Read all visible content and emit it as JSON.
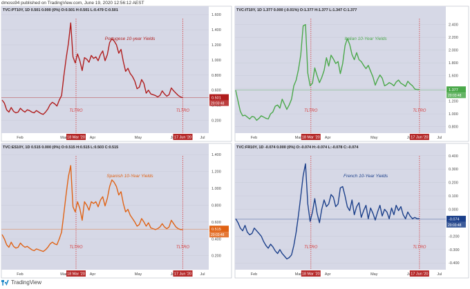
{
  "header": {
    "text": "dmoss94 published on TradingView.com, June 19, 2020 12:56:12 AEST"
  },
  "footer": {
    "text": "TradingView",
    "icon": "tradingview-logo-icon"
  },
  "colors": {
    "panel_bg": "#d6d8e6",
    "marker": "#d63a3a",
    "grid": "#c8cad8"
  },
  "chart_data": [
    {
      "type": "line",
      "ticker": "TVC:PT10Y, 1D  0.501  0.000 (0%)  O:0.501 H:0.501 L:0.479 C:0.501",
      "title": "Portugese 10-year Yields",
      "color": "#b01c1c",
      "ylim": [
        0.05,
        1.62
      ],
      "yticks": [
        "1.600",
        "1.400",
        "1.200",
        "1.000",
        "0.800",
        "0.600",
        "0.400",
        "0.200"
      ],
      "ytick_values": [
        1.6,
        1.4,
        1.2,
        1.0,
        0.8,
        0.6,
        0.4,
        0.2
      ],
      "xticks": [
        "Feb",
        "Mar",
        "Apr",
        "May",
        "Jun",
        "Jul"
      ],
      "xtick_positions": [
        0.09,
        0.3,
        0.44,
        0.66,
        0.83,
        0.97
      ],
      "event_markers": [
        {
          "label": "18 Mar '20",
          "pos": 0.36
        },
        {
          "label": "17 Jun '20",
          "pos": 0.875
        }
      ],
      "event_label": "TLTRO",
      "last_value": "0.501",
      "last_time": "20:03:48",
      "last": 0.501,
      "values": [
        0.47,
        0.43,
        0.34,
        0.31,
        0.37,
        0.32,
        0.3,
        0.31,
        0.36,
        0.33,
        0.31,
        0.34,
        0.33,
        0.31,
        0.3,
        0.33,
        0.31,
        0.29,
        0.28,
        0.31,
        0.35,
        0.41,
        0.44,
        0.42,
        0.39,
        0.47,
        0.53,
        0.79,
        1.02,
        1.22,
        1.49,
        1.04,
        0.96,
        1.08,
        0.99,
        0.86,
        1.03,
        1.01,
        0.97,
        1.06,
        1.02,
        1.04,
        0.99,
        1.07,
        1.12,
        0.99,
        1.07,
        1.23,
        1.28,
        1.25,
        1.2,
        1.09,
        1.14,
        0.98,
        0.85,
        0.89,
        0.82,
        0.78,
        0.72,
        0.62,
        0.64,
        0.74,
        0.69,
        0.56,
        0.6,
        0.55,
        0.54,
        0.53,
        0.51,
        0.53,
        0.59,
        0.55,
        0.52,
        0.54,
        0.63,
        0.59,
        0.56,
        0.53,
        0.51,
        0.5
      ]
    },
    {
      "type": "line",
      "ticker": "TVC:IT10Y, 1D  1.377  0.000 (-0.01%)  O:1.377 H:1.377 L:1.347 C:1.377",
      "title": "Italian 10-Year Yields",
      "color": "#4aa84a",
      "ylim": [
        0.72,
        2.58
      ],
      "yticks": [
        "2.400",
        "2.200",
        "2.000",
        "1.800",
        "1.600",
        "1.400",
        "1.200",
        "1.000",
        "0.800"
      ],
      "ytick_values": [
        2.4,
        2.2,
        2.0,
        1.8,
        1.6,
        1.4,
        1.2,
        1.0,
        0.8
      ],
      "xticks": [
        "Feb",
        "Mar",
        "Apr",
        "May",
        "Jun",
        "Jul"
      ],
      "xtick_positions": [
        0.09,
        0.3,
        0.44,
        0.66,
        0.83,
        0.97
      ],
      "event_markers": [
        {
          "label": "18 Mar '20",
          "pos": 0.36
        },
        {
          "label": "17 Jun '20",
          "pos": 0.875
        }
      ],
      "event_label": "TLTRO",
      "last_value": "1.377",
      "last_time": "20:03:48",
      "last": 1.377,
      "values": [
        1.37,
        1.2,
        1.04,
        0.97,
        0.98,
        0.95,
        0.92,
        0.96,
        0.95,
        0.9,
        0.93,
        0.97,
        0.95,
        0.93,
        0.92,
        1.0,
        1.03,
        1.12,
        1.14,
        1.09,
        1.23,
        1.15,
        1.07,
        1.14,
        1.23,
        1.44,
        1.53,
        1.7,
        1.93,
        2.38,
        2.4,
        1.64,
        1.44,
        1.48,
        1.72,
        1.6,
        1.49,
        1.57,
        1.68,
        1.88,
        1.75,
        1.92,
        1.86,
        1.79,
        1.82,
        1.63,
        1.79,
        2.07,
        2.18,
        2.09,
        1.93,
        1.85,
        1.96,
        1.85,
        1.82,
        1.76,
        1.71,
        1.76,
        1.67,
        1.58,
        1.45,
        1.54,
        1.61,
        1.56,
        1.44,
        1.46,
        1.49,
        1.47,
        1.44,
        1.5,
        1.53,
        1.48,
        1.46,
        1.43,
        1.51,
        1.47,
        1.44,
        1.39,
        1.38,
        1.38
      ]
    },
    {
      "type": "line",
      "ticker": "TVC:ES10Y, 1D  0.515  0.000 (0%)  O:0.515 H:0.515 L:0.503 C:0.515",
      "title": "Spanish 10-Year Yields",
      "color": "#e06214",
      "ylim": [
        0.05,
        1.45
      ],
      "yticks": [
        "1.400",
        "1.200",
        "1.000",
        "0.800",
        "0.600",
        "0.400",
        "0.200"
      ],
      "ytick_values": [
        1.4,
        1.2,
        1.0,
        0.8,
        0.6,
        0.4,
        0.2
      ],
      "xticks": [
        "Feb",
        "Mar",
        "Apr",
        "May",
        "Jun",
        "Jul"
      ],
      "xtick_positions": [
        0.09,
        0.3,
        0.44,
        0.66,
        0.83,
        0.97
      ],
      "event_markers": [
        {
          "label": "18 Mar '20",
          "pos": 0.36
        },
        {
          "label": "17 Jun '20",
          "pos": 0.875
        }
      ],
      "event_label": "TLTRO",
      "last_value": "0.515",
      "last_time": "20:03:48",
      "last": 0.515,
      "values": [
        0.45,
        0.4,
        0.33,
        0.3,
        0.36,
        0.31,
        0.29,
        0.3,
        0.35,
        0.32,
        0.3,
        0.31,
        0.29,
        0.27,
        0.26,
        0.28,
        0.27,
        0.26,
        0.25,
        0.27,
        0.3,
        0.34,
        0.36,
        0.34,
        0.33,
        0.4,
        0.48,
        0.7,
        0.93,
        1.14,
        1.27,
        0.78,
        0.72,
        0.84,
        0.76,
        0.62,
        0.84,
        0.8,
        0.74,
        0.84,
        0.82,
        0.84,
        0.78,
        0.86,
        0.9,
        0.79,
        0.88,
        1.02,
        1.1,
        1.07,
        1.02,
        0.92,
        0.96,
        0.82,
        0.72,
        0.75,
        0.68,
        0.64,
        0.6,
        0.55,
        0.57,
        0.64,
        0.6,
        0.55,
        0.59,
        0.53,
        0.52,
        0.51,
        0.52,
        0.54,
        0.58,
        0.54,
        0.52,
        0.54,
        0.62,
        0.58,
        0.54,
        0.52,
        0.51,
        0.51
      ]
    },
    {
      "type": "line",
      "ticker": "TVC:FR10Y, 1D  -0.074  0.000 (0%)  O:-0.074 H:-0.074 L:-0.078 C:-0.074",
      "title": "French 10-Year Yields",
      "color": "#1b3f8a",
      "ylim": [
        -0.44,
        0.44
      ],
      "yticks": [
        "0.400",
        "0.300",
        "0.200",
        "0.100",
        "0.000",
        "-0.100",
        "-0.200",
        "-0.300",
        "-0.400"
      ],
      "ytick_values": [
        0.4,
        0.3,
        0.2,
        0.1,
        0.0,
        -0.1,
        -0.2,
        -0.3,
        -0.4
      ],
      "xticks": [
        "Feb",
        "Mar",
        "Apr",
        "May",
        "Jun",
        "Jul"
      ],
      "xtick_positions": [
        0.09,
        0.3,
        0.44,
        0.66,
        0.83,
        0.97
      ],
      "event_markers": [
        {
          "label": "18 Mar '20",
          "pos": 0.36
        },
        {
          "label": "17 Jun '20",
          "pos": 0.875
        }
      ],
      "event_label": "TLTRO",
      "last_value": "-0.074",
      "last_time": "20:03:48",
      "last": -0.074,
      "values": [
        -0.07,
        -0.1,
        -0.14,
        -0.16,
        -0.12,
        -0.17,
        -0.19,
        -0.18,
        -0.14,
        -0.16,
        -0.18,
        -0.2,
        -0.24,
        -0.27,
        -0.29,
        -0.26,
        -0.28,
        -0.31,
        -0.33,
        -0.3,
        -0.33,
        -0.35,
        -0.37,
        -0.36,
        -0.34,
        -0.27,
        -0.17,
        -0.04,
        0.1,
        0.25,
        0.34,
        0.04,
        -0.09,
        -0.02,
        0.08,
        -0.03,
        -0.1,
        0.0,
        0.07,
        0.02,
        0.04,
        0.11,
        0.09,
        0.02,
        0.04,
        0.16,
        0.17,
        0.1,
        0.02,
        -0.01,
        0.07,
        -0.04,
        0.02,
        0.05,
        -0.06,
        -0.01,
        0.03,
        -0.07,
        0.01,
        -0.03,
        -0.08,
        -0.02,
        0.03,
        -0.05,
        0.0,
        -0.02,
        -0.07,
        0.01,
        -0.04,
        0.03,
        -0.01,
        0.02,
        -0.04,
        -0.07,
        -0.02,
        -0.05,
        -0.07,
        -0.06,
        -0.07,
        -0.07
      ]
    }
  ]
}
